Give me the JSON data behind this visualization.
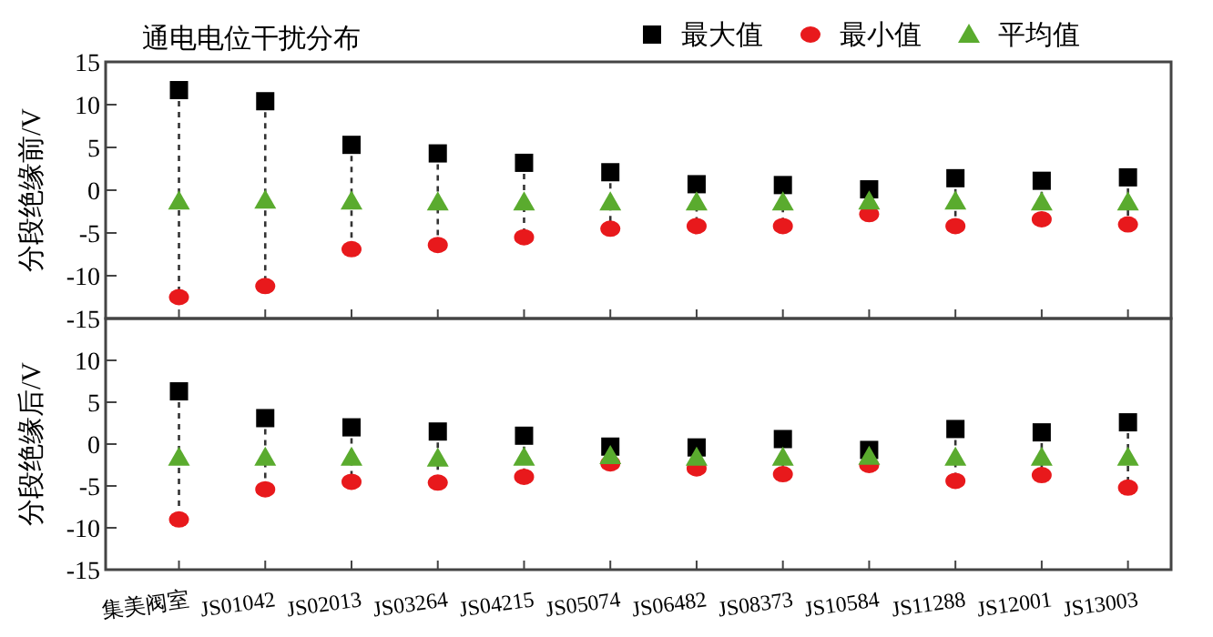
{
  "chart_data": [
    {
      "type": "scatter",
      "title": "通电电位干扰分布",
      "ylabel": "分段绝缘前/V",
      "legend": "top right",
      "tick_labels": "y",
      "categories": [
        "集美阀室",
        "JS01042",
        "JS02013",
        "JS03264",
        "JS04215",
        "JS05074",
        "JS06482",
        "JS08373",
        "JS10584",
        "JS11288",
        "JS12001",
        "JS13003"
      ],
      "ylim": [
        -15,
        15
      ],
      "yticks": [
        -15,
        -10,
        -5,
        0,
        5,
        10,
        15
      ],
      "series": [
        {
          "name": "最大值",
          "color": "#000000",
          "marker": "square",
          "values": [
            11.7,
            10.4,
            5.3,
            4.3,
            3.2,
            2.1,
            0.7,
            0.6,
            0.1,
            1.4,
            1.1,
            1.5
          ]
        },
        {
          "name": "最小值",
          "color": "#e8191c",
          "marker": "circle",
          "values": [
            -12.5,
            -11.2,
            -6.9,
            -6.4,
            -5.5,
            -4.5,
            -4.2,
            -4.2,
            -2.8,
            -4.2,
            -3.4,
            -4.0
          ]
        },
        {
          "name": "平均值",
          "color": "#5aab2e",
          "marker": "triangle",
          "values": [
            -1.3,
            -1.2,
            -1.3,
            -1.4,
            -1.4,
            -1.4,
            -1.4,
            -1.4,
            -1.3,
            -1.3,
            -1.4,
            -1.4
          ]
        }
      ]
    },
    {
      "type": "scatter",
      "ylabel": "分段绝缘后/V",
      "categories": [
        "集美阀室",
        "JS01042",
        "JS02013",
        "JS03264",
        "JS04215",
        "JS05074",
        "JS06482",
        "JS08373",
        "JS10584",
        "JS11288",
        "JS12001",
        "JS13003"
      ],
      "ylim": [
        -15,
        15
      ],
      "yticks": [
        -15,
        -10,
        -5,
        0,
        5,
        10,
        {
          "value": 15,
          "label": null
        }
      ],
      "series": [
        {
          "color": "#000000",
          "marker": "square",
          "values": [
            6.3,
            3.1,
            2.0,
            1.5,
            1.0,
            -0.3,
            -0.4,
            0.6,
            -0.7,
            1.8,
            1.4,
            2.6
          ]
        },
        {
          "color": "#e8191c",
          "marker": "circle",
          "values": [
            -9.0,
            -5.4,
            -4.5,
            -4.6,
            -3.9,
            -2.3,
            -2.9,
            -3.6,
            -2.5,
            -4.4,
            -3.7,
            -5.2
          ]
        },
        {
          "color": "#5aab2e",
          "marker": "triangle",
          "values": [
            -1.6,
            -1.6,
            -1.6,
            -1.7,
            -1.6,
            -1.4,
            -1.6,
            -1.6,
            -1.5,
            -1.6,
            -1.6,
            -1.6
          ]
        }
      ]
    }
  ]
}
